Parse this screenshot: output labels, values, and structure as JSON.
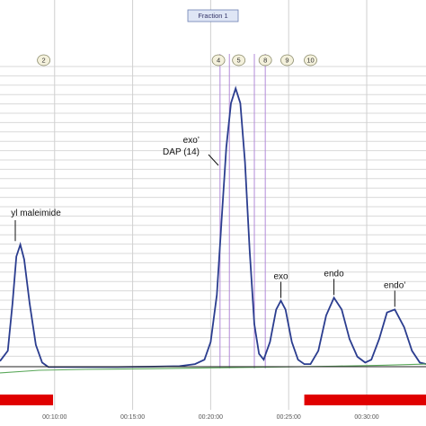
{
  "chart_data": {
    "type": "line",
    "title": "Fraction 1",
    "xlabel": "",
    "ylabel": "",
    "x_tick_labels": [
      "00:10:00",
      "00:15:00",
      "00:20:00",
      "00:25:00",
      "00:30:00"
    ],
    "x_tick_minutes": [
      10,
      15,
      20,
      25,
      30
    ],
    "xlim_minutes": [
      6.5,
      33.8
    ],
    "ylim": [
      0,
      100
    ],
    "grid": true,
    "fraction_markers": [
      {
        "label": "2",
        "x": 9.3
      },
      {
        "label": "4",
        "x": 20.5
      },
      {
        "label": "5",
        "x": 21.8
      },
      {
        "label": "8",
        "x": 23.5
      },
      {
        "label": "9",
        "x": 24.9
      },
      {
        "label": "10",
        "x": 26.4
      }
    ],
    "vertical_markers_minutes": [
      20.6,
      21.2,
      22.8,
      23.5
    ],
    "series": [
      {
        "color": "#2b3d8f",
        "points": [
          [
            6.5,
            2.5
          ],
          [
            7.0,
            6.0
          ],
          [
            7.3,
            22.0
          ],
          [
            7.55,
            38.0
          ],
          [
            7.8,
            42.0
          ],
          [
            8.05,
            37.0
          ],
          [
            8.4,
            22.0
          ],
          [
            8.8,
            8.0
          ],
          [
            9.2,
            2.0
          ],
          [
            9.6,
            0.5
          ],
          [
            10.0,
            0.5
          ],
          [
            12.0,
            0.5
          ],
          [
            14.0,
            0.5
          ],
          [
            16.0,
            0.6
          ],
          [
            18.0,
            0.8
          ],
          [
            19.0,
            1.5
          ],
          [
            19.6,
            3.0
          ],
          [
            20.0,
            9.0
          ],
          [
            20.4,
            25.0
          ],
          [
            20.7,
            50.0
          ],
          [
            21.0,
            75.0
          ],
          [
            21.3,
            90.0
          ],
          [
            21.6,
            95.0
          ],
          [
            21.9,
            90.0
          ],
          [
            22.2,
            70.0
          ],
          [
            22.5,
            40.0
          ],
          [
            22.8,
            15.0
          ],
          [
            23.1,
            5.0
          ],
          [
            23.4,
            3.0
          ],
          [
            23.8,
            9.0
          ],
          [
            24.2,
            20.0
          ],
          [
            24.5,
            23.0
          ],
          [
            24.8,
            20.0
          ],
          [
            25.2,
            9.0
          ],
          [
            25.6,
            3.0
          ],
          [
            26.0,
            1.5
          ],
          [
            26.4,
            1.5
          ],
          [
            26.9,
            6.0
          ],
          [
            27.4,
            18.0
          ],
          [
            27.9,
            24.0
          ],
          [
            28.4,
            20.0
          ],
          [
            28.9,
            10.0
          ],
          [
            29.4,
            4.0
          ],
          [
            29.9,
            2.0
          ],
          [
            30.3,
            3.0
          ],
          [
            30.8,
            10.0
          ],
          [
            31.3,
            19.0
          ],
          [
            31.8,
            20.0
          ],
          [
            32.4,
            14.0
          ],
          [
            32.9,
            6.0
          ],
          [
            33.4,
            2.0
          ],
          [
            33.8,
            1.5
          ]
        ]
      },
      {
        "color": "#5aa85a",
        "points": [
          [
            6.5,
            -1.5
          ],
          [
            9.0,
            -0.6
          ],
          [
            12.0,
            -0.3
          ],
          [
            16.0,
            -0.1
          ],
          [
            20.0,
            0.2
          ],
          [
            24.0,
            0.5
          ],
          [
            28.0,
            0.8
          ],
          [
            31.0,
            1.1
          ],
          [
            33.8,
            1.5
          ]
        ]
      },
      {
        "color": "#222222",
        "points": [
          [
            6.5,
            0.6
          ],
          [
            33.8,
            0.6
          ]
        ]
      }
    ],
    "annotations": [
      {
        "lines": [
          "yl maleimide"
        ],
        "x": 7.75,
        "y": 42
      },
      {
        "lines": [
          "exo’",
          "DAP (14)"
        ],
        "x": 20.3,
        "y": 54
      },
      {
        "lines": [
          "exo"
        ],
        "x": 24.5,
        "y": 23
      },
      {
        "lines": [
          "endo"
        ],
        "x": 27.9,
        "y": 24
      },
      {
        "lines": [
          "endo’"
        ],
        "x": 31.8,
        "y": 20
      }
    ],
    "fraction_bars": [
      {
        "color": "#e00000",
        "x0": 6.5,
        "x1": 9.9
      },
      {
        "color": "#e00000",
        "x0": 26.0,
        "x1": 33.8
      }
    ]
  }
}
